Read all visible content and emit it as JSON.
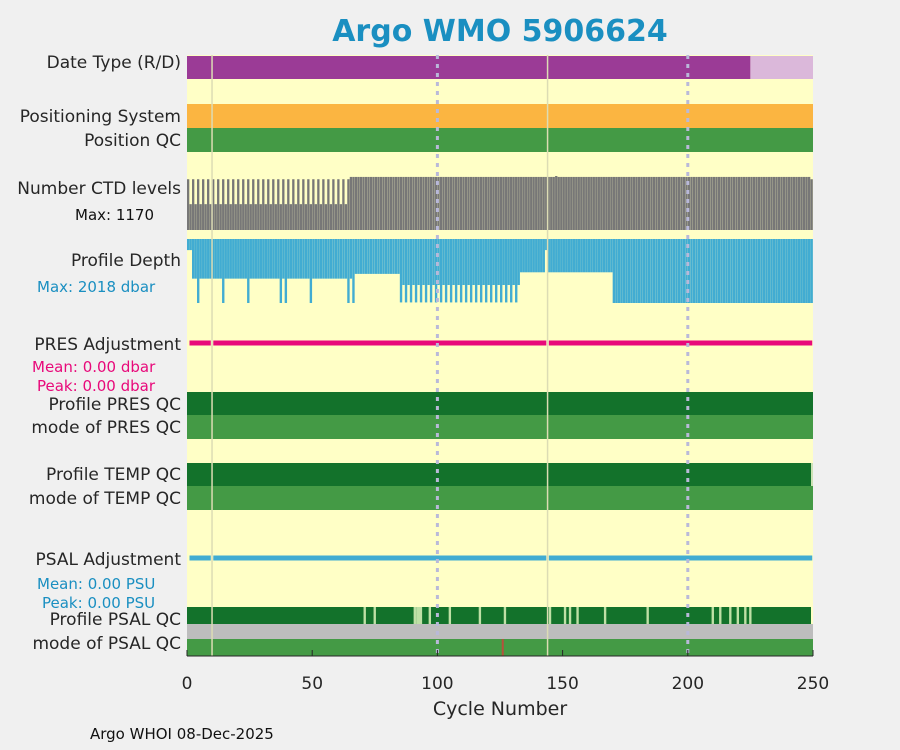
{
  "chart_data": {
    "type": "timeline",
    "title": "Argo WMO 5906624",
    "xlabel": "Cycle Number",
    "xlim": [
      0,
      250
    ],
    "xticks": [
      0,
      50,
      100,
      150,
      200,
      250
    ],
    "vlines_dotted": [
      100,
      200
    ],
    "vlines_solid": [
      10,
      144
    ],
    "rows": {
      "date_type": {
        "label": "Date Type (R/D)",
        "segments": [
          {
            "from": 0,
            "to": 225,
            "color": "#9b3b96",
            "value": "R"
          },
          {
            "from": 225,
            "to": 250,
            "color": "#dbb8da",
            "value": "D"
          }
        ]
      },
      "positioning_system": {
        "label": "Positioning System",
        "segments": [
          {
            "from": 0,
            "to": 250,
            "color": "#fbb541"
          }
        ]
      },
      "position_qc": {
        "label": "Position QC",
        "segments": [
          {
            "from": 0,
            "to": 250,
            "color": "#449a45"
          }
        ]
      },
      "ctd_levels": {
        "label": "Number CTD levels",
        "max_label": "Max: 1170",
        "max": 1170,
        "color": "#777777",
        "typical_by_range": [
          {
            "from": 0,
            "to": 66,
            "value": 1100
          },
          {
            "from": 66,
            "to": 250,
            "value": 1150
          }
        ]
      },
      "profile_depth": {
        "label": "Profile Depth",
        "max_label": "Max: 2018 dbar",
        "max": 2018,
        "color": "#41acd2",
        "shallow_ranges": [
          {
            "from": 67,
            "to": 85,
            "value": 1100
          },
          {
            "from": 85,
            "to": 133,
            "value": 1450
          },
          {
            "from": 133,
            "to": 170,
            "value": 1050
          }
        ]
      },
      "pres_adjustment": {
        "label": "PRES Adjustment",
        "mean_label": "Mean: 0.00 dbar",
        "peak_label": "Peak: 0.00 dbar",
        "color": "#e8097a",
        "gaps": [
          10,
          144
        ]
      },
      "profile_pres_qc": {
        "label": "Profile PRES QC",
        "color": "#13722b"
      },
      "mode_pres_qc": {
        "label": "mode of PRES QC",
        "color": "#449a45"
      },
      "profile_temp_qc": {
        "label": "Profile TEMP QC",
        "color": "#13722b"
      },
      "mode_temp_qc": {
        "label": "mode of TEMP QC",
        "color": "#449a45"
      },
      "psal_adjustment": {
        "label": "PSAL Adjustment",
        "mean_label": "Mean: 0.00 PSU",
        "peak_label": "Peak: 0.00 PSU",
        "color": "#41acd2",
        "gaps": [
          10,
          144
        ]
      },
      "profile_psal_qc": {
        "label": "Profile PSAL QC",
        "color": "#13722b",
        "gap_cycles": [
          71,
          75,
          91,
          92,
          93,
          97,
          105,
          117,
          127,
          145,
          151,
          153,
          156,
          167,
          184,
          210,
          213,
          217,
          220,
          223,
          225
        ]
      },
      "mode_psal_qc": {
        "label": "mode of PSAL QC",
        "color": "#449a45",
        "flag_cycles": [
          126
        ]
      }
    }
  },
  "footer": "Argo WHOI 08-Dec-2025"
}
